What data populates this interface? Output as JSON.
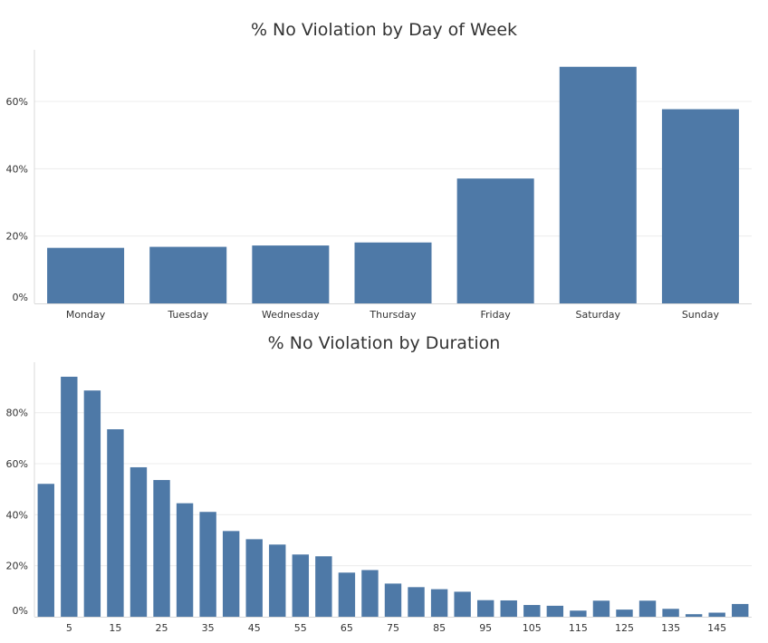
{
  "chart_data": [
    {
      "type": "bar",
      "title": "% No Violation by Day of Week",
      "categories": [
        "Monday",
        "Tuesday",
        "Wednesday",
        "Thursday",
        "Friday",
        "Saturday",
        "Sunday"
      ],
      "values": [
        16.5,
        16.8,
        17.2,
        18.1,
        37.1,
        70.3,
        57.7
      ],
      "y_ticks": [
        "0%",
        "20%",
        "40%",
        "60%"
      ],
      "ylim": [
        0,
        74
      ],
      "grid": true,
      "bar_color": "#4e79a7"
    },
    {
      "type": "bar",
      "title": "% No Violation by Duration",
      "x": [
        0,
        5,
        10,
        15,
        20,
        25,
        30,
        35,
        40,
        45,
        50,
        55,
        60,
        65,
        70,
        75,
        80,
        85,
        90,
        95,
        100,
        105,
        110,
        115,
        120,
        125,
        130,
        135,
        140,
        145,
        150
      ],
      "values": [
        52.1,
        94.1,
        88.7,
        73.5,
        58.6,
        53.6,
        44.5,
        41.1,
        33.6,
        30.4,
        28.3,
        24.4,
        23.7,
        17.3,
        18.3,
        13.0,
        11.6,
        10.8,
        9.8,
        6.5,
        6.4,
        4.6,
        4.3,
        2.4,
        6.3,
        2.8,
        6.3,
        3.1,
        1.0,
        1.6,
        5.0
      ],
      "x_ticks": [
        "5",
        "15",
        "25",
        "35",
        "45",
        "55",
        "65",
        "75",
        "85",
        "95",
        "105",
        "115",
        "125",
        "135",
        "145"
      ],
      "y_ticks": [
        "0%",
        "20%",
        "40%",
        "60%",
        "80%"
      ],
      "ylim": [
        0,
        98
      ],
      "grid": true,
      "bar_color": "#4e79a7"
    }
  ]
}
